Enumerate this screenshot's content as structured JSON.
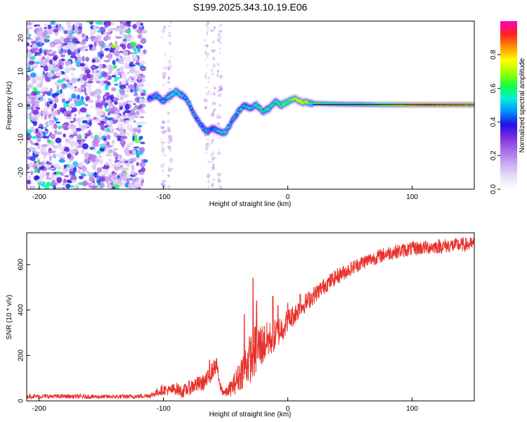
{
  "title": "S199.2025.343.10.19.E06",
  "colors": {
    "trace": "#e8322c",
    "axis": "#000000",
    "track_center": "#1e1e1e",
    "colormap": [
      "#ffffff",
      "#e8ddf6",
      "#c9a9f0",
      "#a66be8",
      "#7a2ee0",
      "#2010e8",
      "#0090ff",
      "#00f0e0",
      "#10ff40",
      "#a0ff00",
      "#ffff00",
      "#ff9000",
      "#ff2020",
      "#ff00c0"
    ]
  },
  "chart_data": [
    {
      "name": "spectrogram",
      "type": "heatmap",
      "xlabel": "Height of straight line (km)",
      "ylabel": "Frequency (Hz)",
      "xlim": [
        -210,
        150
      ],
      "ylim": [
        -25,
        25
      ],
      "xticks": [
        -200,
        -100,
        0,
        100
      ],
      "yticks": [
        -20,
        -10,
        0,
        10,
        20
      ],
      "colorbar": {
        "label": "Normalized spectral amplitude",
        "range": [
          0,
          1
        ],
        "ticks": [
          0.0,
          0.2,
          0.4,
          0.6,
          0.8
        ]
      },
      "noise_region": {
        "x_range": [
          -210,
          -115
        ],
        "y_range": [
          -25,
          25
        ],
        "normalized_amplitude": 0.25
      },
      "sparse_noise_columns": [
        -100,
        -95,
        -65,
        -60,
        -55
      ],
      "tone_track": {
        "x": [
          -112,
          -105,
          -100,
          -95,
          -90,
          -85,
          -80,
          -75,
          -70,
          -65,
          -60,
          -55,
          -50,
          -45,
          -40,
          -35,
          -30,
          -25,
          -20,
          -15,
          -10,
          -5,
          0,
          5,
          10,
          20,
          40,
          60,
          80,
          100,
          120,
          150
        ],
        "frequency_hz": [
          2,
          3,
          1,
          3,
          4,
          3,
          1,
          -3,
          -6,
          -8,
          -7,
          -8,
          -8,
          -5,
          -2,
          0,
          -1,
          0,
          -2,
          -1,
          1,
          0,
          1,
          2,
          1,
          0.5,
          0.3,
          0.2,
          0.1,
          0.1,
          0.1,
          0.1
        ],
        "normalized_amplitude": [
          0.4,
          0.45,
          0.5,
          0.5,
          0.55,
          0.5,
          0.5,
          0.45,
          0.45,
          0.5,
          0.45,
          0.5,
          0.55,
          0.45,
          0.5,
          0.5,
          0.5,
          0.55,
          0.55,
          0.55,
          0.55,
          0.6,
          0.65,
          0.7,
          0.75,
          0.6,
          0.6,
          0.6,
          0.7,
          0.85,
          0.85,
          0.8
        ]
      }
    },
    {
      "name": "snr",
      "type": "line",
      "xlabel": "Height of straight line (km)",
      "ylabel": "SNR (10 * v/v)",
      "xlim": [
        -210,
        150
      ],
      "ylim": [
        0,
        740
      ],
      "xticks": [
        -200,
        -100,
        0,
        100
      ],
      "yticks": [
        0,
        200,
        400,
        600
      ],
      "series": [
        {
          "name": "SNR",
          "x": [
            -210,
            -180,
            -150,
            -120,
            -110,
            -100,
            -95,
            -90,
            -85,
            -80,
            -75,
            -70,
            -65,
            -60,
            -57,
            -55,
            -52,
            -50,
            -45,
            -40,
            -35,
            -30,
            -25,
            -20,
            -15,
            -10,
            -5,
            0,
            5,
            10,
            20,
            30,
            40,
            50,
            60,
            70,
            80,
            90,
            100,
            120,
            150
          ],
          "y": [
            20,
            20,
            18,
            20,
            25,
            50,
            45,
            55,
            40,
            55,
            70,
            75,
            90,
            140,
            160,
            70,
            40,
            35,
            60,
            100,
            150,
            190,
            230,
            250,
            270,
            290,
            320,
            350,
            380,
            410,
            460,
            510,
            550,
            580,
            610,
            630,
            650,
            660,
            670,
            680,
            690
          ],
          "spread": [
            12,
            12,
            12,
            12,
            15,
            30,
            30,
            35,
            35,
            40,
            45,
            45,
            50,
            50,
            40,
            30,
            25,
            25,
            50,
            80,
            110,
            140,
            150,
            120,
            100,
            90,
            80,
            70,
            60,
            55,
            50,
            45,
            45,
            40,
            40,
            40,
            40,
            40,
            40,
            40,
            40
          ],
          "spikes": [
            {
              "x": -63,
              "y": 180
            },
            {
              "x": -35,
              "y": 380
            },
            {
              "x": -28,
              "y": 540
            },
            {
              "x": -25,
              "y": 440
            },
            {
              "x": -12,
              "y": 460
            },
            {
              "x": -8,
              "y": 420
            },
            {
              "x": 0,
              "y": 430
            },
            {
              "x": 10,
              "y": 470
            }
          ]
        }
      ]
    }
  ]
}
